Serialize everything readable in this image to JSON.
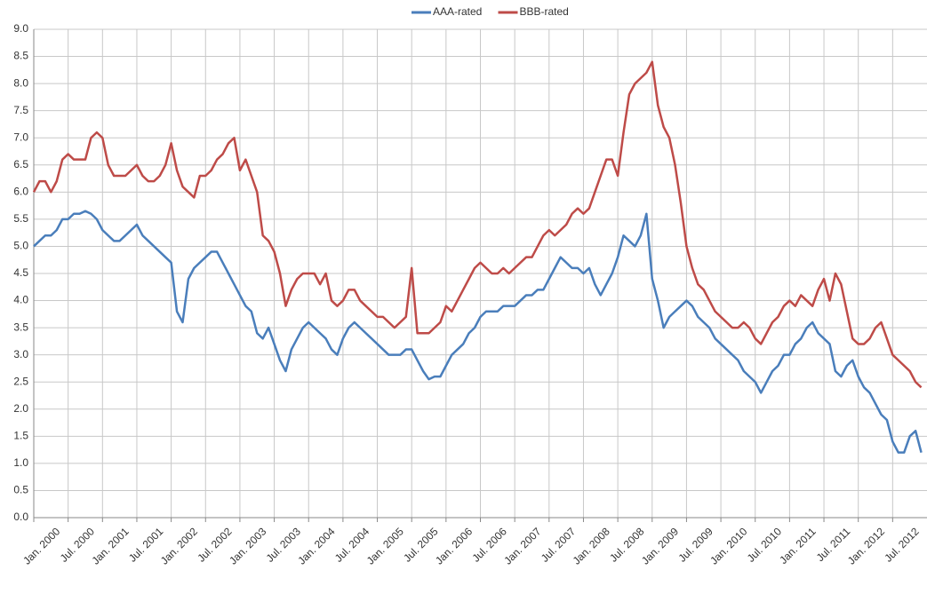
{
  "chart_data": {
    "type": "line",
    "x": [
      "2000-01",
      "2000-02",
      "2000-03",
      "2000-04",
      "2000-05",
      "2000-06",
      "2000-07",
      "2000-08",
      "2000-09",
      "2000-10",
      "2000-11",
      "2000-12",
      "2001-01",
      "2001-02",
      "2001-03",
      "2001-04",
      "2001-05",
      "2001-06",
      "2001-07",
      "2001-08",
      "2001-09",
      "2001-10",
      "2001-11",
      "2001-12",
      "2002-01",
      "2002-02",
      "2002-03",
      "2002-04",
      "2002-05",
      "2002-06",
      "2002-07",
      "2002-08",
      "2002-09",
      "2002-10",
      "2002-11",
      "2002-12",
      "2003-01",
      "2003-02",
      "2003-03",
      "2003-04",
      "2003-05",
      "2003-06",
      "2003-07",
      "2003-08",
      "2003-09",
      "2003-10",
      "2003-11",
      "2003-12",
      "2004-01",
      "2004-02",
      "2004-03",
      "2004-04",
      "2004-05",
      "2004-06",
      "2004-07",
      "2004-08",
      "2004-09",
      "2004-10",
      "2004-11",
      "2004-12",
      "2005-01",
      "2005-02",
      "2005-03",
      "2005-04",
      "2005-05",
      "2005-06",
      "2005-07",
      "2005-08",
      "2005-09",
      "2005-10",
      "2005-11",
      "2005-12",
      "2006-01",
      "2006-02",
      "2006-03",
      "2006-04",
      "2006-05",
      "2006-06",
      "2006-07",
      "2006-08",
      "2006-09",
      "2006-10",
      "2006-11",
      "2006-12",
      "2007-01",
      "2007-02",
      "2007-03",
      "2007-04",
      "2007-05",
      "2007-06",
      "2007-07",
      "2007-08",
      "2007-09",
      "2007-10",
      "2007-11",
      "2007-12",
      "2008-01",
      "2008-02",
      "2008-03",
      "2008-04",
      "2008-05",
      "2008-06",
      "2008-07",
      "2008-08",
      "2008-09",
      "2008-10",
      "2008-11",
      "2008-12",
      "2009-01",
      "2009-02",
      "2009-03",
      "2009-04",
      "2009-05",
      "2009-06",
      "2009-07",
      "2009-08",
      "2009-09",
      "2009-10",
      "2009-11",
      "2009-12",
      "2010-01",
      "2010-02",
      "2010-03",
      "2010-04",
      "2010-05",
      "2010-06",
      "2010-07",
      "2010-08",
      "2010-09",
      "2010-10",
      "2010-11",
      "2010-12",
      "2011-01",
      "2011-02",
      "2011-03",
      "2011-04",
      "2011-05",
      "2011-06",
      "2011-07",
      "2011-08",
      "2011-09",
      "2011-10",
      "2011-11",
      "2011-12",
      "2012-01",
      "2012-02",
      "2012-03",
      "2012-04",
      "2012-05",
      "2012-06",
      "2012-07",
      "2012-08",
      "2012-09",
      "2012-10",
      "2012-11",
      "2012-12"
    ],
    "series": [
      {
        "name": "AAA-rated",
        "color": "#4a7ebb",
        "values": [
          5.0,
          5.1,
          5.2,
          5.2,
          5.3,
          5.5,
          5.5,
          5.6,
          5.6,
          5.65,
          5.6,
          5.5,
          5.3,
          5.2,
          5.1,
          5.1,
          5.2,
          5.3,
          5.4,
          5.2,
          5.1,
          5.0,
          4.9,
          4.8,
          4.7,
          3.8,
          3.6,
          4.4,
          4.6,
          4.7,
          4.8,
          4.9,
          4.9,
          4.7,
          4.5,
          4.3,
          4.1,
          3.9,
          3.8,
          3.4,
          3.3,
          3.5,
          3.2,
          2.9,
          2.7,
          3.1,
          3.3,
          3.5,
          3.6,
          3.5,
          3.4,
          3.3,
          3.1,
          3.0,
          3.3,
          3.5,
          3.6,
          3.5,
          3.4,
          3.3,
          3.2,
          3.1,
          3.0,
          3.0,
          3.0,
          3.1,
          3.1,
          2.9,
          2.7,
          2.55,
          2.6,
          2.6,
          2.8,
          3.0,
          3.1,
          3.2,
          3.4,
          3.5,
          3.7,
          3.8,
          3.8,
          3.8,
          3.9,
          3.9,
          3.9,
          4.0,
          4.1,
          4.1,
          4.2,
          4.2,
          4.4,
          4.6,
          4.8,
          4.7,
          4.6,
          4.6,
          4.5,
          4.6,
          4.3,
          4.1,
          4.3,
          4.5,
          4.8,
          5.2,
          5.1,
          5.0,
          5.2,
          5.6,
          4.4,
          4.0,
          3.5,
          3.7,
          3.8,
          3.9,
          4.0,
          3.9,
          3.7,
          3.6,
          3.5,
          3.3,
          3.2,
          3.1,
          3.0,
          2.9,
          2.7,
          2.6,
          2.5,
          2.3,
          2.5,
          2.7,
          2.8,
          3.0,
          3.0,
          3.2,
          3.3,
          3.5,
          3.6,
          3.4,
          3.3,
          3.2,
          2.7,
          2.6,
          2.8,
          2.9,
          2.6,
          2.4,
          2.3,
          2.1,
          1.9,
          1.8,
          1.4,
          1.2,
          1.2,
          1.5,
          1.6,
          1.2
        ]
      },
      {
        "name": "BBB-rated",
        "color": "#be4b48",
        "values": [
          6.0,
          6.2,
          6.2,
          6.0,
          6.2,
          6.6,
          6.7,
          6.6,
          6.6,
          6.6,
          7.0,
          7.1,
          7.0,
          6.5,
          6.3,
          6.3,
          6.3,
          6.4,
          6.5,
          6.3,
          6.2,
          6.2,
          6.3,
          6.5,
          6.9,
          6.4,
          6.1,
          6.0,
          5.9,
          6.3,
          6.3,
          6.4,
          6.6,
          6.7,
          6.9,
          7.0,
          6.4,
          6.6,
          6.3,
          6.0,
          5.2,
          5.1,
          4.9,
          4.5,
          3.9,
          4.2,
          4.4,
          4.5,
          4.5,
          4.5,
          4.3,
          4.5,
          4.0,
          3.9,
          4.0,
          4.2,
          4.2,
          4.0,
          3.9,
          3.8,
          3.7,
          3.7,
          3.6,
          3.5,
          3.6,
          3.7,
          4.6,
          3.4,
          3.4,
          3.4,
          3.5,
          3.6,
          3.9,
          3.8,
          4.0,
          4.2,
          4.4,
          4.6,
          4.7,
          4.6,
          4.5,
          4.5,
          4.6,
          4.5,
          4.6,
          4.7,
          4.8,
          4.8,
          5.0,
          5.2,
          5.3,
          5.2,
          5.3,
          5.4,
          5.6,
          5.7,
          5.6,
          5.7,
          6.0,
          6.3,
          6.6,
          6.6,
          6.3,
          7.1,
          7.8,
          8.0,
          8.1,
          8.2,
          8.4,
          7.6,
          7.2,
          7.0,
          6.5,
          5.8,
          5.0,
          4.6,
          4.3,
          4.2,
          4.0,
          3.8,
          3.7,
          3.6,
          3.5,
          3.5,
          3.6,
          3.5,
          3.3,
          3.2,
          3.4,
          3.6,
          3.7,
          3.9,
          4.0,
          3.9,
          4.1,
          4.0,
          3.9,
          4.2,
          4.4,
          4.0,
          4.5,
          4.3,
          3.8,
          3.3,
          3.2,
          3.2,
          3.3,
          3.5,
          3.6,
          3.3,
          3.0,
          2.9,
          2.8,
          2.7,
          2.5,
          2.4
        ]
      }
    ],
    "xlim": [
      "2000-01",
      "2013-01"
    ],
    "xticks": [
      {
        "value": "2000-01",
        "label": "Jan. 2000"
      },
      {
        "value": "2000-07",
        "label": "Jul. 2000"
      },
      {
        "value": "2001-01",
        "label": "Jan. 2001"
      },
      {
        "value": "2001-07",
        "label": "Jul. 2001"
      },
      {
        "value": "2002-01",
        "label": "Jan. 2002"
      },
      {
        "value": "2002-07",
        "label": "Jul. 2002"
      },
      {
        "value": "2003-01",
        "label": "Jan. 2003"
      },
      {
        "value": "2003-07",
        "label": "Jul. 2003"
      },
      {
        "value": "2004-01",
        "label": "Jan. 2004"
      },
      {
        "value": "2004-07",
        "label": "Jul. 2004"
      },
      {
        "value": "2005-01",
        "label": "Jan. 2005"
      },
      {
        "value": "2005-07",
        "label": "Jul. 2005"
      },
      {
        "value": "2006-01",
        "label": "Jan. 2006"
      },
      {
        "value": "2006-07",
        "label": "Jul. 2006"
      },
      {
        "value": "2007-01",
        "label": "Jan. 2007"
      },
      {
        "value": "2007-07",
        "label": "Jul. 2007"
      },
      {
        "value": "2008-01",
        "label": "Jan. 2008"
      },
      {
        "value": "2008-07",
        "label": "Jul. 2008"
      },
      {
        "value": "2009-01",
        "label": "Jan. 2009"
      },
      {
        "value": "2009-07",
        "label": "Jul. 2009"
      },
      {
        "value": "2010-01",
        "label": "Jan. 2010"
      },
      {
        "value": "2010-07",
        "label": "Jul. 2010"
      },
      {
        "value": "2011-01",
        "label": "Jan. 2011"
      },
      {
        "value": "2011-07",
        "label": "Jul. 2011"
      },
      {
        "value": "2012-01",
        "label": "Jan. 2012"
      },
      {
        "value": "2012-07",
        "label": "Jul. 2012"
      }
    ],
    "ylim": [
      0,
      9
    ],
    "yticks": [
      {
        "value": 0,
        "label": "0.0"
      },
      {
        "value": 0.5,
        "label": "0.5"
      },
      {
        "value": 1,
        "label": "1.0"
      },
      {
        "value": 1.5,
        "label": "1.5"
      },
      {
        "value": 2,
        "label": "2.0"
      },
      {
        "value": 2.5,
        "label": "2.5"
      },
      {
        "value": 3,
        "label": "3.0"
      },
      {
        "value": 3.5,
        "label": "3.5"
      },
      {
        "value": 4,
        "label": "4.0"
      },
      {
        "value": 4.5,
        "label": "4.5"
      },
      {
        "value": 5,
        "label": "5.0"
      },
      {
        "value": 5.5,
        "label": "5.5"
      },
      {
        "value": 6,
        "label": "6.0"
      },
      {
        "value": 6.5,
        "label": "6.5"
      },
      {
        "value": 7,
        "label": "7.0"
      },
      {
        "value": 7.5,
        "label": "7.5"
      },
      {
        "value": 8,
        "label": "8.0"
      },
      {
        "value": 8.5,
        "label": "8.5"
      },
      {
        "value": 9,
        "label": "9.0"
      }
    ],
    "grid": true,
    "legend": "top"
  }
}
